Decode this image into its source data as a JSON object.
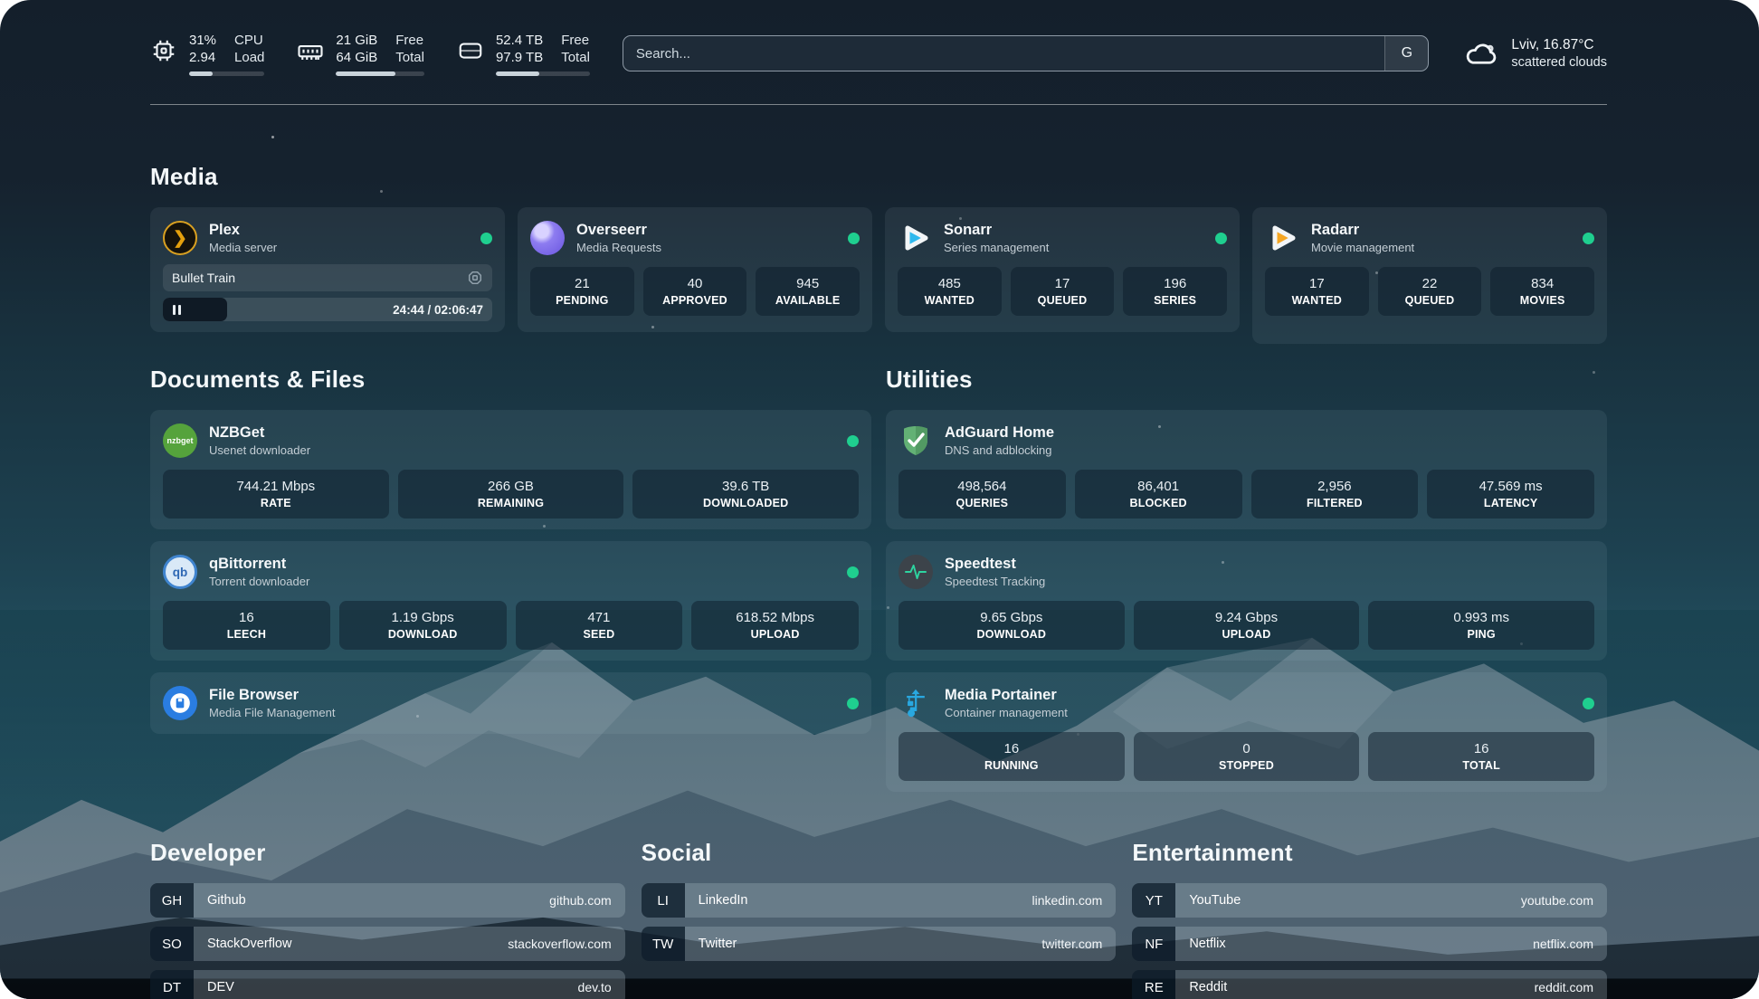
{
  "colors": {
    "status_online": "#1fcf8f",
    "plex_gold": "#e5a00d",
    "sonarr_blue": "#2fb9ee",
    "radarr_orange": "#f5a623",
    "portainer_blue": "#29a8e0",
    "adguard_green": "#63b175"
  },
  "topbar": {
    "cpu": {
      "value_top": "31%",
      "value_bottom": "2.94",
      "label_top": "CPU",
      "label_bottom": "Load",
      "progress_pct": 31
    },
    "memory": {
      "value_top": "21 GiB",
      "value_bottom": "64 GiB",
      "label_top": "Free",
      "label_bottom": "Total",
      "progress_pct": 67
    },
    "disk": {
      "value_top": "52.4 TB",
      "value_bottom": "97.9 TB",
      "label_top": "Free",
      "label_bottom": "Total",
      "progress_pct": 46
    },
    "search": {
      "placeholder": "Search...",
      "engine_label": "G"
    },
    "weather": {
      "location_temp": "Lviv, 16.87°C",
      "condition": "scattered clouds"
    }
  },
  "sections": {
    "media": "Media",
    "documents": "Documents & Files",
    "utilities": "Utilities",
    "developer": "Developer",
    "social": "Social",
    "entertainment": "Entertainment"
  },
  "cards": {
    "plex": {
      "name": "Plex",
      "desc": "Media server",
      "now_playing": "Bullet Train",
      "time": "24:44 / 02:06:47",
      "progress_pct": 19.5
    },
    "overseerr": {
      "name": "Overseerr",
      "desc": "Media Requests",
      "stats": [
        {
          "value": "21",
          "label": "PENDING"
        },
        {
          "value": "40",
          "label": "APPROVED"
        },
        {
          "value": "945",
          "label": "AVAILABLE"
        }
      ]
    },
    "sonarr": {
      "name": "Sonarr",
      "desc": "Series management",
      "stats": [
        {
          "value": "485",
          "label": "WANTED"
        },
        {
          "value": "17",
          "label": "QUEUED"
        },
        {
          "value": "196",
          "label": "SERIES"
        }
      ]
    },
    "radarr": {
      "name": "Radarr",
      "desc": "Movie management",
      "stats": [
        {
          "value": "17",
          "label": "WANTED"
        },
        {
          "value": "22",
          "label": "QUEUED"
        },
        {
          "value": "834",
          "label": "MOVIES"
        }
      ]
    },
    "nzbget": {
      "name": "NZBGet",
      "desc": "Usenet downloader",
      "icon_text": "nzbget",
      "stats": [
        {
          "value": "744.21 Mbps",
          "label": "RATE"
        },
        {
          "value": "266 GB",
          "label": "REMAINING"
        },
        {
          "value": "39.6 TB",
          "label": "DOWNLOADED"
        }
      ]
    },
    "qbittorrent": {
      "name": "qBittorrent",
      "desc": "Torrent downloader",
      "icon_text": "qb",
      "stats": [
        {
          "value": "16",
          "label": "LEECH"
        },
        {
          "value": "1.19 Gbps",
          "label": "DOWNLOAD"
        },
        {
          "value": "471",
          "label": "SEED"
        },
        {
          "value": "618.52 Mbps",
          "label": "UPLOAD"
        }
      ]
    },
    "filebrowser": {
      "name": "File Browser",
      "desc": "Media File Management"
    },
    "adguard": {
      "name": "AdGuard Home",
      "desc": "DNS and adblocking",
      "stats": [
        {
          "value": "498,564",
          "label": "QUERIES"
        },
        {
          "value": "86,401",
          "label": "BLOCKED"
        },
        {
          "value": "2,956",
          "label": "FILTERED"
        },
        {
          "value": "47.569 ms",
          "label": "LATENCY"
        }
      ]
    },
    "speedtest": {
      "name": "Speedtest",
      "desc": "Speedtest Tracking",
      "stats": [
        {
          "value": "9.65 Gbps",
          "label": "DOWNLOAD"
        },
        {
          "value": "9.24 Gbps",
          "label": "UPLOAD"
        },
        {
          "value": "0.993 ms",
          "label": "PING"
        }
      ]
    },
    "portainer": {
      "name": "Media Portainer",
      "desc": "Container management",
      "stats": [
        {
          "value": "16",
          "label": "RUNNING"
        },
        {
          "value": "0",
          "label": "STOPPED"
        },
        {
          "value": "16",
          "label": "TOTAL"
        }
      ]
    }
  },
  "links": {
    "developer": [
      {
        "abbr": "GH",
        "name": "Github",
        "url": "github.com"
      },
      {
        "abbr": "SO",
        "name": "StackOverflow",
        "url": "stackoverflow.com"
      },
      {
        "abbr": "DT",
        "name": "DEV",
        "url": "dev.to"
      }
    ],
    "social": [
      {
        "abbr": "LI",
        "name": "LinkedIn",
        "url": "linkedin.com"
      },
      {
        "abbr": "TW",
        "name": "Twitter",
        "url": "twitter.com"
      }
    ],
    "entertainment": [
      {
        "abbr": "YT",
        "name": "YouTube",
        "url": "youtube.com"
      },
      {
        "abbr": "NF",
        "name": "Netflix",
        "url": "netflix.com"
      },
      {
        "abbr": "RE",
        "name": "Reddit",
        "url": "reddit.com"
      }
    ]
  }
}
